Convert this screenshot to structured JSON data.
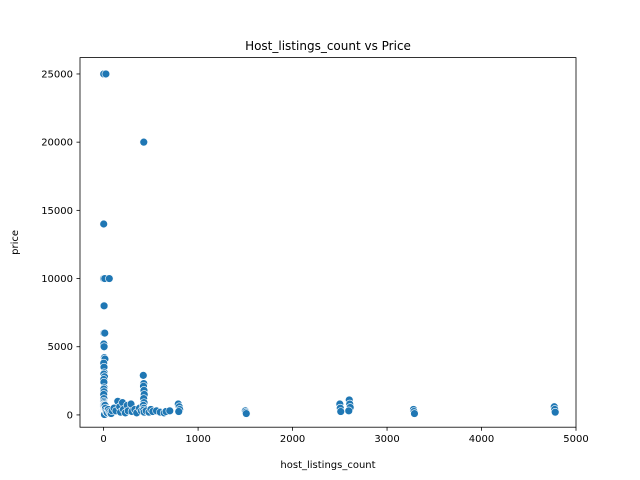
{
  "chart_data": {
    "type": "scatter",
    "title": "Host_listings_count vs Price",
    "xlabel": "host_listings_count",
    "ylabel": "price",
    "xlim": [
      -250,
      5000
    ],
    "ylim": [
      -900,
      26200
    ],
    "xticks": [
      0,
      1000,
      2000,
      3000,
      4000,
      5000
    ],
    "yticks": [
      0,
      5000,
      10000,
      15000,
      20000,
      25000
    ],
    "grid": false,
    "marker_color": "#1f77b4",
    "points": [
      [
        1,
        25000
      ],
      [
        24,
        25000
      ],
      [
        425,
        20000
      ],
      [
        1,
        14000
      ],
      [
        1,
        10000
      ],
      [
        12,
        10000
      ],
      [
        60,
        10000
      ],
      [
        5,
        8000
      ],
      [
        3,
        6000
      ],
      [
        12,
        6000
      ],
      [
        2,
        5200
      ],
      [
        5,
        5000
      ],
      [
        8,
        4200
      ],
      [
        14,
        4100
      ],
      [
        1,
        3800
      ],
      [
        4,
        3500
      ],
      [
        7,
        3100
      ],
      [
        2,
        3000
      ],
      [
        9,
        2800
      ],
      [
        1,
        2600
      ],
      [
        3,
        2400
      ],
      [
        6,
        2000
      ],
      [
        2,
        1900
      ],
      [
        4,
        1700
      ],
      [
        1,
        1500
      ],
      [
        3,
        1200
      ],
      [
        2,
        1000
      ],
      [
        5,
        900
      ],
      [
        8,
        800
      ],
      [
        1,
        700
      ],
      [
        2,
        600
      ],
      [
        3,
        500
      ],
      [
        4,
        400
      ],
      [
        6,
        350
      ],
      [
        1,
        300
      ],
      [
        2,
        250
      ],
      [
        3,
        200
      ],
      [
        5,
        150
      ],
      [
        7,
        120
      ],
      [
        1,
        100
      ],
      [
        2,
        80
      ],
      [
        4,
        60
      ],
      [
        6,
        40
      ],
      [
        9,
        30
      ],
      [
        15,
        700
      ],
      [
        20,
        500
      ],
      [
        25,
        300
      ],
      [
        30,
        200
      ],
      [
        40,
        150
      ],
      [
        50,
        400
      ],
      [
        60,
        250
      ],
      [
        70,
        150
      ],
      [
        80,
        100
      ],
      [
        90,
        300
      ],
      [
        110,
        500
      ],
      [
        130,
        300
      ],
      [
        150,
        1000
      ],
      [
        170,
        600
      ],
      [
        180,
        200
      ],
      [
        200,
        900
      ],
      [
        210,
        400
      ],
      [
        230,
        150
      ],
      [
        250,
        700
      ],
      [
        260,
        300
      ],
      [
        290,
        800
      ],
      [
        300,
        250
      ],
      [
        330,
        400
      ],
      [
        350,
        150
      ],
      [
        380,
        500
      ],
      [
        400,
        300
      ],
      [
        420,
        2900
      ],
      [
        425,
        2300
      ],
      [
        422,
        2100
      ],
      [
        427,
        1800
      ],
      [
        430,
        1500
      ],
      [
        424,
        1200
      ],
      [
        428,
        900
      ],
      [
        421,
        700
      ],
      [
        426,
        500
      ],
      [
        423,
        350
      ],
      [
        429,
        200
      ],
      [
        450,
        300
      ],
      [
        480,
        200
      ],
      [
        500,
        400
      ],
      [
        520,
        250
      ],
      [
        560,
        300
      ],
      [
        600,
        200
      ],
      [
        640,
        150
      ],
      [
        660,
        250
      ],
      [
        700,
        300
      ],
      [
        790,
        800
      ],
      [
        800,
        600
      ],
      [
        805,
        400
      ],
      [
        795,
        250
      ],
      [
        1500,
        300
      ],
      [
        1505,
        200
      ],
      [
        1510,
        100
      ],
      [
        2500,
        800
      ],
      [
        2505,
        500
      ],
      [
        2510,
        250
      ],
      [
        2600,
        1100
      ],
      [
        2605,
        800
      ],
      [
        2610,
        550
      ],
      [
        2595,
        300
      ],
      [
        3280,
        400
      ],
      [
        3285,
        250
      ],
      [
        3290,
        100
      ],
      [
        4770,
        600
      ],
      [
        4775,
        400
      ],
      [
        4780,
        200
      ]
    ]
  }
}
